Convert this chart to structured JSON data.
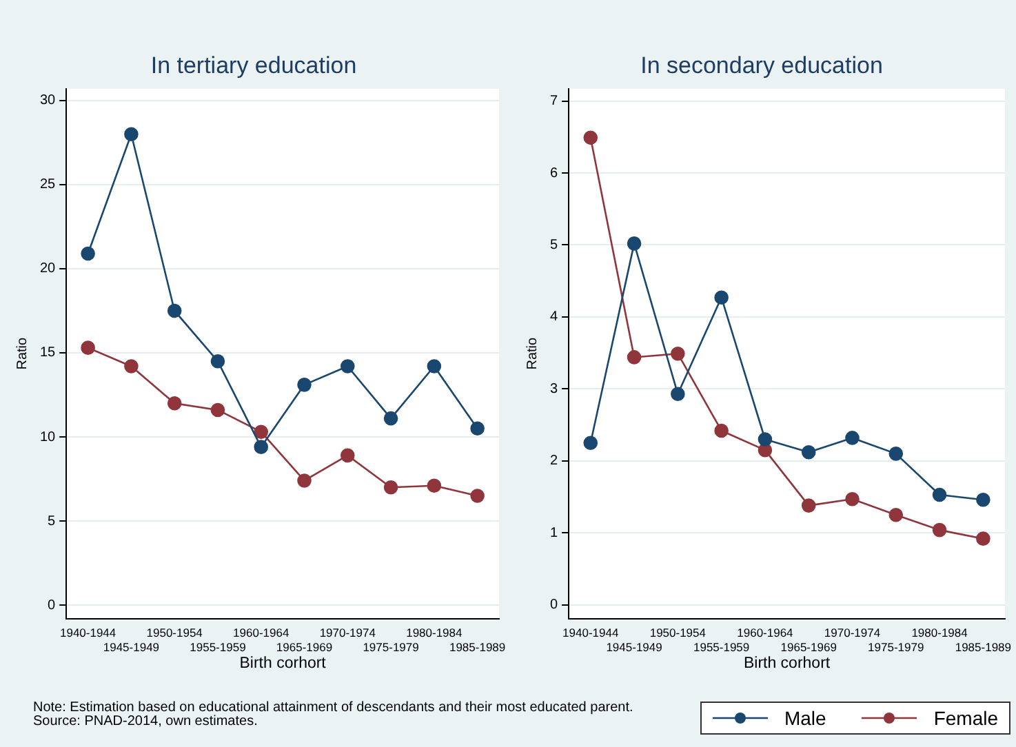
{
  "chart_data": [
    {
      "type": "line",
      "title": "In tertiary education",
      "xlabel": "Birth corhort",
      "ylabel": "Ratio",
      "categories": [
        "1940-1944",
        "1945-1949",
        "1950-1954",
        "1955-1959",
        "1960-1964",
        "1965-1969",
        "1970-1974",
        "1975-1979",
        "1980-1984",
        "1985-1989"
      ],
      "series": [
        {
          "name": "Male",
          "color": "#1a476f",
          "values": [
            20.9,
            28,
            17.5,
            14.5,
            9.4,
            13.1,
            14.2,
            11.1,
            14.2,
            10.5
          ]
        },
        {
          "name": "Female",
          "color": "#90353b",
          "values": [
            15.3,
            14.2,
            12.0,
            11.6,
            10.3,
            7.4,
            8.9,
            7.0,
            7.1,
            6.5
          ]
        }
      ],
      "ylim": [
        -0.8,
        30.7
      ],
      "yticks": [
        0,
        5,
        10,
        15,
        20,
        25,
        30
      ],
      "grid": "y",
      "marker": "circle",
      "line_style": "solid",
      "legend": "bottom right",
      "annotations": [
        "Note: Estimation based on educational attainment of descendants and their most educated parent.",
        "Source: PNAD-2014, own estimates."
      ]
    },
    {
      "type": "line",
      "title": "In secondary education",
      "xlabel": "Birth corhort",
      "ylabel": "Ratio",
      "categories": [
        "1940-1944",
        "1945-1949",
        "1950-1954",
        "1955-1959",
        "1960-1964",
        "1965-1969",
        "1970-1974",
        "1975-1979",
        "1980-1984",
        "1985-1989"
      ],
      "series": [
        {
          "name": "Male",
          "color": "#1a476f",
          "values": [
            2.25,
            5.02,
            2.93,
            4.27,
            2.3,
            2.12,
            2.32,
            2.1,
            1.53,
            1.46
          ]
        },
        {
          "name": "Female",
          "color": "#90353b",
          "values": [
            6.49,
            3.44,
            3.49,
            2.42,
            2.15,
            1.38,
            1.47,
            1.25,
            1.04,
            0.92
          ]
        }
      ],
      "ylim": [
        -0.19,
        7.17
      ],
      "yticks": [
        0,
        1,
        2,
        3,
        4,
        5,
        6,
        7
      ],
      "grid": "y",
      "marker": "circle",
      "line_style": "solid",
      "legend": "bottom right"
    }
  ]
}
